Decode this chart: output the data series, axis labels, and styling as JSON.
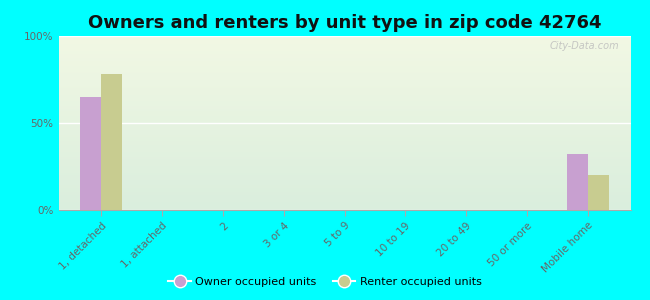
{
  "title": "Owners and renters by unit type in zip code 42764",
  "categories": [
    "1, detached",
    "1, attached",
    "2",
    "3 or 4",
    "5 to 9",
    "10 to 19",
    "20 to 49",
    "50 or more",
    "Mobile home"
  ],
  "owner_values": [
    65,
    0,
    0,
    0,
    0,
    0,
    0,
    0,
    32
  ],
  "renter_values": [
    78,
    0,
    0,
    0,
    0,
    0,
    0,
    0,
    20
  ],
  "owner_color": "#c8a0d0",
  "renter_color": "#c8cc90",
  "background_color": "#00ffff",
  "ylabel_ticks": [
    "0%",
    "50%",
    "100%"
  ],
  "ytick_vals": [
    0,
    50,
    100
  ],
  "owner_label": "Owner occupied units",
  "renter_label": "Renter occupied units",
  "bar_width": 0.35,
  "title_fontsize": 13,
  "tick_fontsize": 7.5,
  "watermark": "City-Data.com"
}
